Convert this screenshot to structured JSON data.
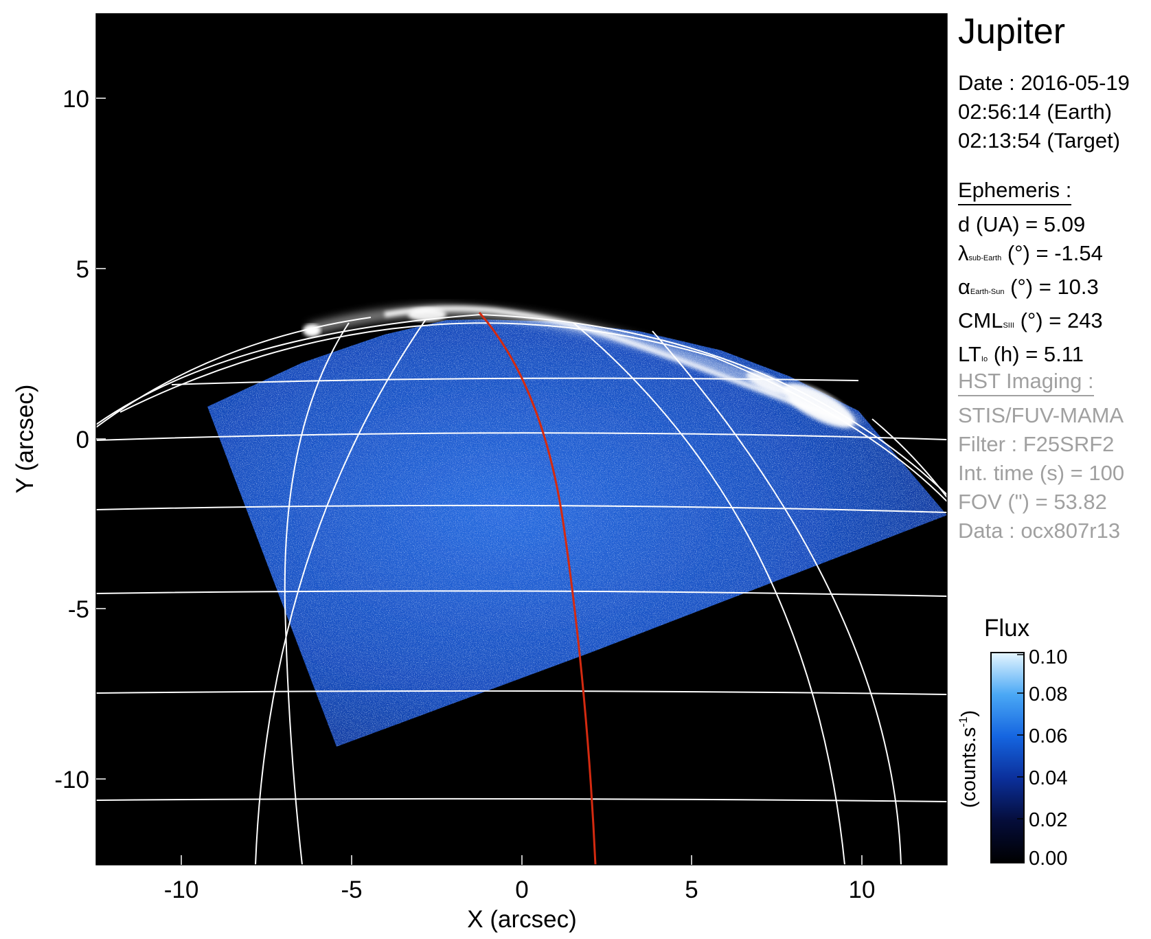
{
  "title": "Jupiter",
  "observation": {
    "date": "Date : 2016-05-19",
    "time_earth": "02:56:14 (Earth)",
    "time_target": "02:13:54 (Target)"
  },
  "ephemeris": {
    "header": "Ephemeris :",
    "distance": "d (UA)    = 5.09",
    "lambda_symbol": "λ",
    "lambda_sub": "sub-Earth",
    "lambda_rest": " (°) = -1.54",
    "alpha_symbol": "α",
    "alpha_sub": "Earth-Sun",
    "alpha_rest": " (°) = 10.3",
    "cml_main": "CML",
    "cml_sub": "SIII",
    "cml_rest": " (°) = 243",
    "lt_main": "LT",
    "lt_sub": "Io",
    "lt_rest": " (h) = 5.11"
  },
  "instrument": {
    "header": "HST Imaging :",
    "detector": "STIS/FUV-MAMA",
    "filter": "Filter : F25SRF2",
    "int_time": "Int. time (s) = 100",
    "fov": "FOV (\") = 53.82",
    "data_id": "Data : ocx807r13"
  },
  "colorbar": {
    "title": "Flux",
    "unit_label": "(counts.s",
    "unit_exp": "-1",
    "unit_close": ")",
    "range": [
      0.0,
      0.1
    ],
    "ticks": [
      "0.00",
      "0.02",
      "0.04",
      "0.06",
      "0.08",
      "0.10"
    ],
    "colors": [
      "#000000",
      "#050d3a",
      "#0b2f9a",
      "#1565e0",
      "#4aa8f5",
      "#c8ecff"
    ]
  },
  "axes": {
    "xlabel": "X (arcsec)",
    "ylabel": "Y (arcsec)",
    "xlim": [
      -12.5,
      12.5
    ],
    "ylim": [
      -12.5,
      12.5
    ],
    "xticks": [
      "-10",
      "-5",
      "0",
      "5",
      "10"
    ],
    "yticks": [
      "-10",
      "-5",
      "0",
      "5",
      "10"
    ]
  },
  "colors": {
    "background": "#000000",
    "grid": "#ffffff",
    "central_meridian": "#d42a10",
    "aurora_glow": "#ffffff",
    "disk_emission": "#1f5fd6"
  }
}
